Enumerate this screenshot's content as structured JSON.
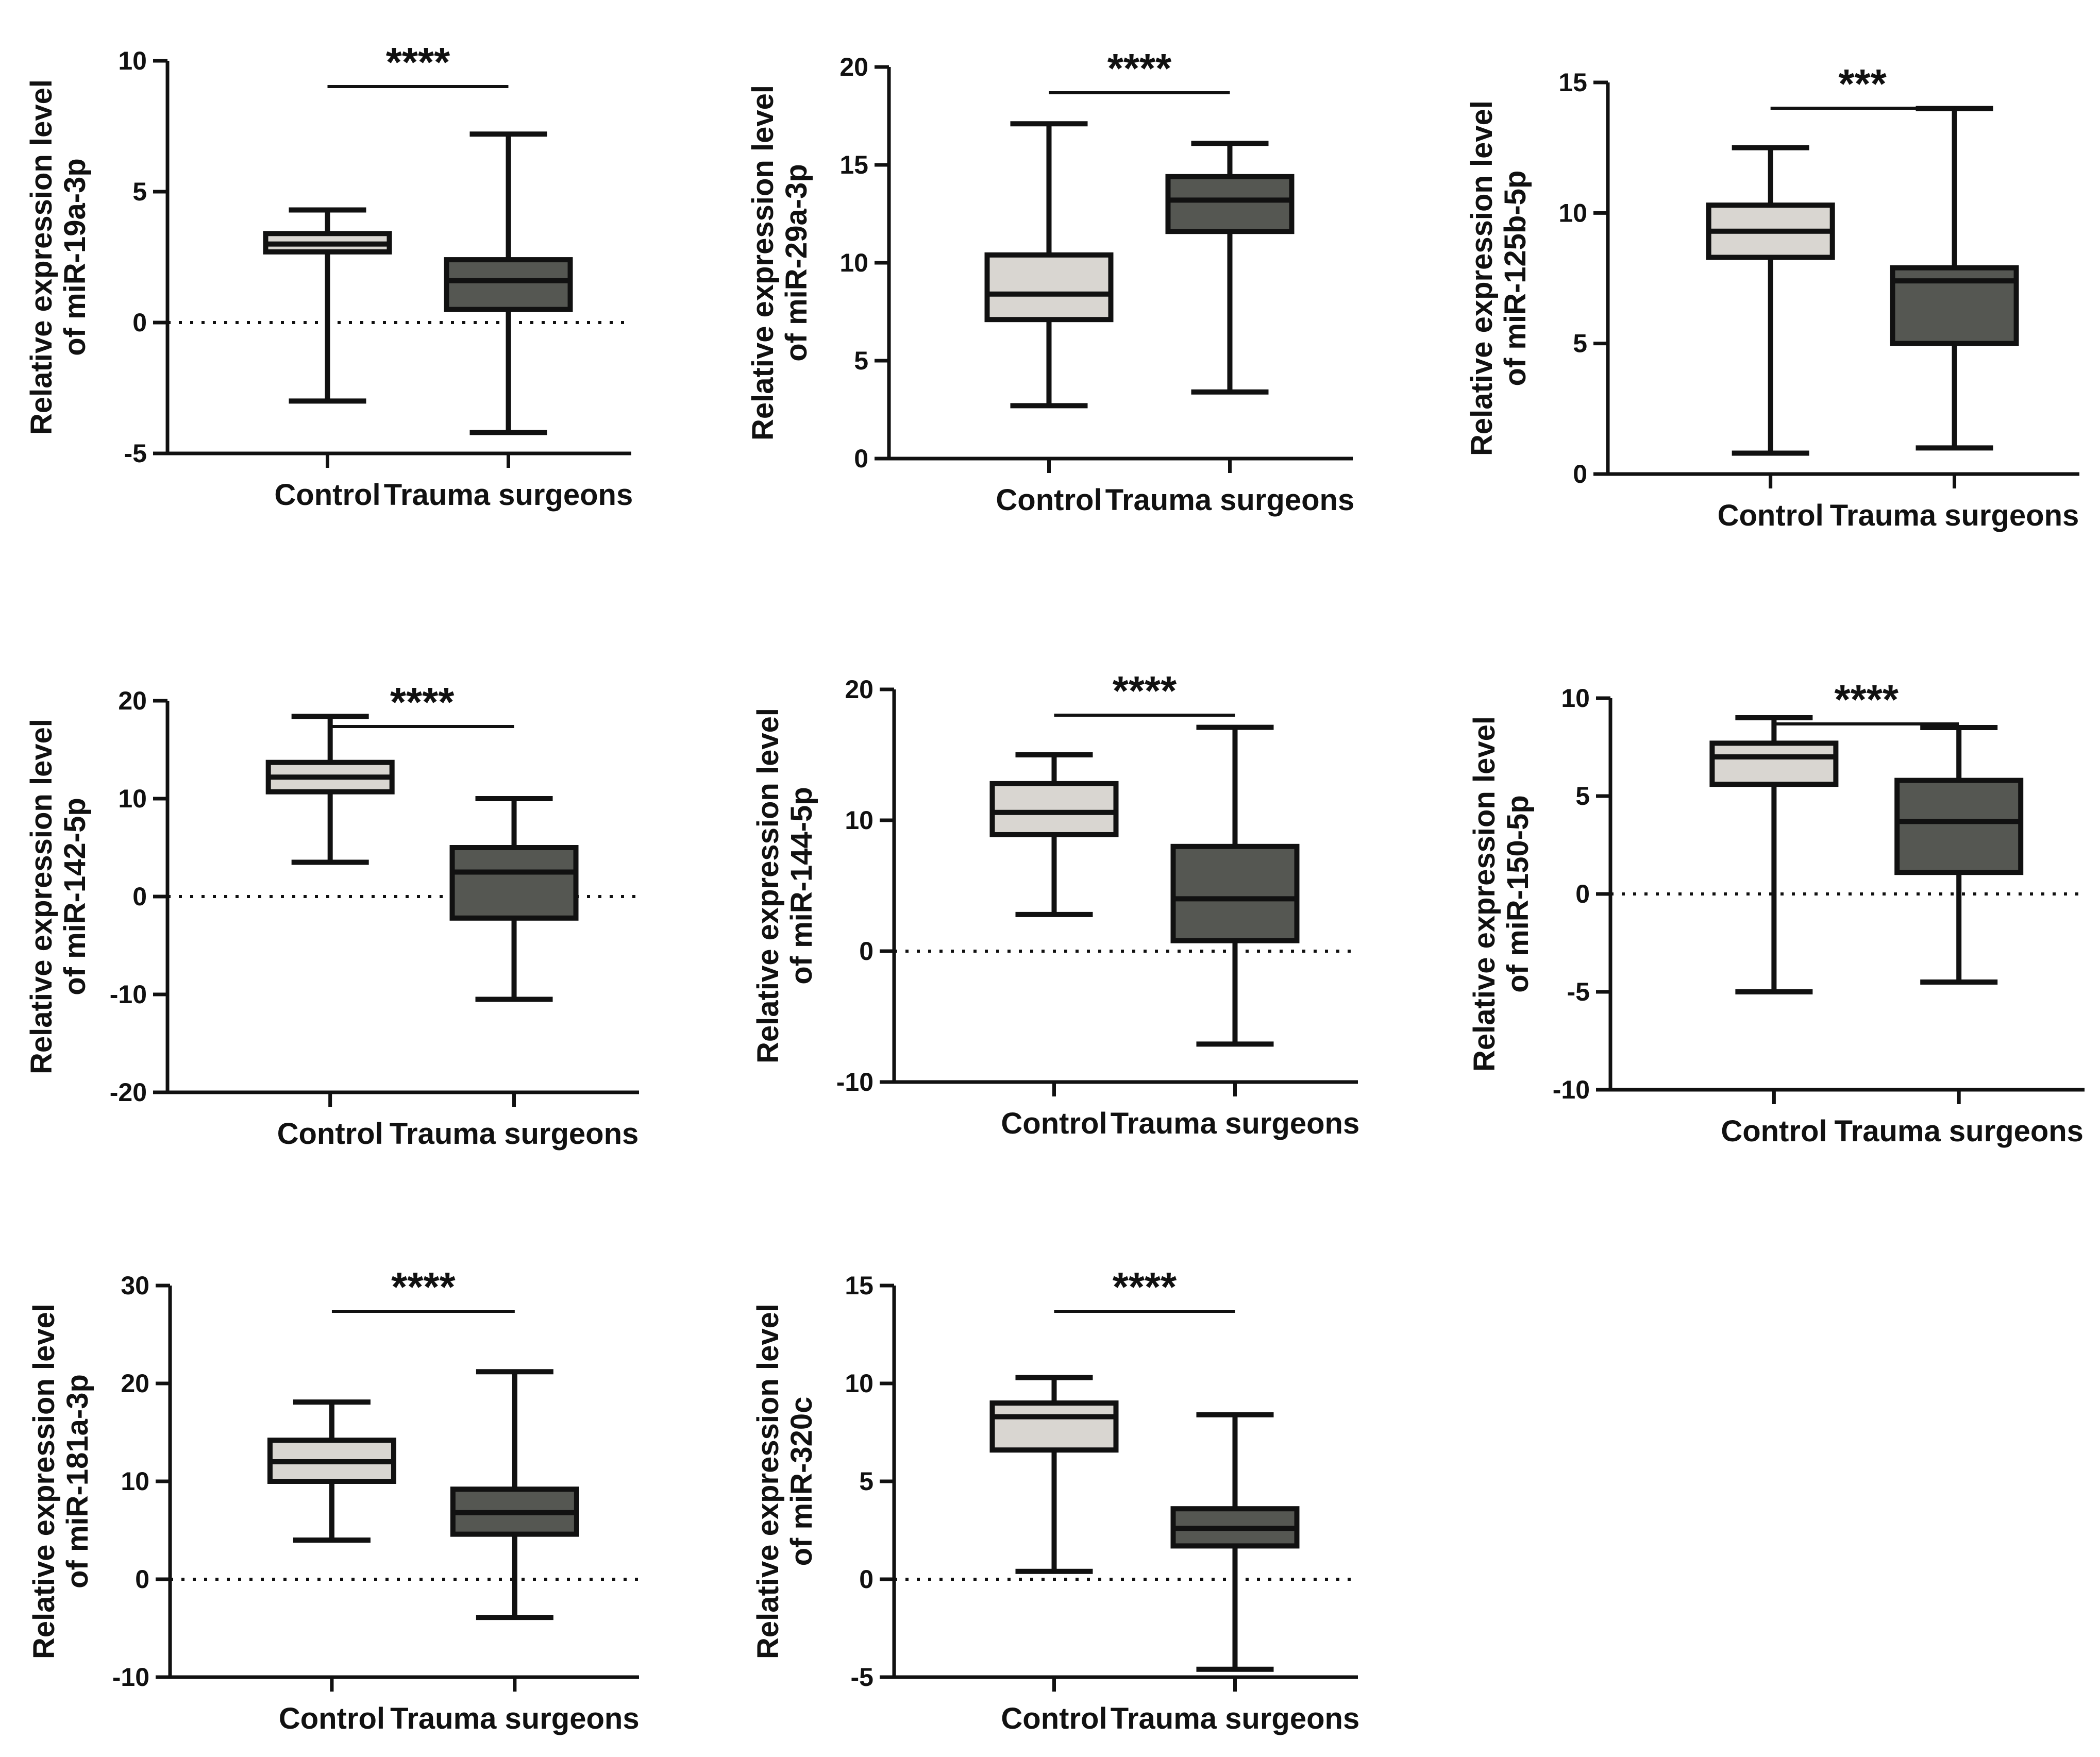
{
  "chart_data": [
    {
      "type": "box",
      "panel": "miR-19a-3p",
      "ylabel_line1": "Relative expression level",
      "ylabel_line2": "of miR-19a-3p",
      "ylim": [
        -5,
        10
      ],
      "ticks": [
        -5,
        0,
        5,
        10
      ],
      "tick_labels": [
        "-5",
        "0",
        "5",
        "10"
      ],
      "zero_line": true,
      "significance": "****",
      "categories": [
        "Control",
        "Trauma surgeons"
      ],
      "boxes": [
        {
          "name": "Control",
          "min": -3.0,
          "q1": 2.7,
          "median": 3.0,
          "q3": 3.4,
          "max": 4.3,
          "color": "#d9d6d1"
        },
        {
          "name": "Trauma surgeons",
          "min": -4.2,
          "q1": 0.5,
          "median": 1.6,
          "q3": 2.4,
          "max": 7.2,
          "color": "#555752"
        }
      ]
    },
    {
      "type": "box",
      "panel": "miR-29a-3p",
      "ylabel_line1": "Relative expression level",
      "ylabel_line2": "of miR-29a-3p",
      "ylim": [
        0,
        20
      ],
      "ticks": [
        0,
        5,
        10,
        15,
        20
      ],
      "tick_labels": [
        "0",
        "5",
        "10",
        "15",
        "20"
      ],
      "zero_line": false,
      "significance": "****",
      "categories": [
        "Control",
        "Trauma surgeons"
      ],
      "boxes": [
        {
          "name": "Control",
          "min": 2.7,
          "q1": 7.1,
          "median": 8.4,
          "q3": 10.4,
          "max": 17.1,
          "color": "#d9d6d1"
        },
        {
          "name": "Trauma surgeons",
          "min": 3.4,
          "q1": 11.6,
          "median": 13.2,
          "q3": 14.4,
          "max": 16.1,
          "color": "#555752"
        }
      ]
    },
    {
      "type": "box",
      "panel": "miR-125b-5p",
      "ylabel_line1": "Relative expression level",
      "ylabel_line2": "of miR-125b-5p",
      "ylim": [
        0,
        15
      ],
      "ticks": [
        0,
        5,
        10,
        15
      ],
      "tick_labels": [
        "0",
        "5",
        "10",
        "15"
      ],
      "zero_line": false,
      "significance": "***",
      "categories": [
        "Control",
        "Trauma surgeons"
      ],
      "boxes": [
        {
          "name": "Control",
          "min": 0.8,
          "q1": 8.3,
          "median": 9.3,
          "q3": 10.3,
          "max": 12.5,
          "color": "#d9d6d1"
        },
        {
          "name": "Trauma surgeons",
          "min": 1.0,
          "q1": 5.0,
          "median": 7.4,
          "q3": 7.9,
          "max": 14.0,
          "color": "#555752"
        }
      ]
    },
    {
      "type": "box",
      "panel": "miR-142-5p",
      "ylabel_line1": "Relative expression level",
      "ylabel_line2": "of miR-142-5p",
      "ylim": [
        -20,
        20
      ],
      "ticks": [
        -20,
        -10,
        0,
        10,
        20
      ],
      "tick_labels": [
        "-20",
        "-10",
        "0",
        "10",
        "20"
      ],
      "zero_line": true,
      "significance": "****",
      "categories": [
        "Control",
        "Trauma surgeons"
      ],
      "boxes": [
        {
          "name": "Control",
          "min": 3.5,
          "q1": 10.7,
          "median": 12.2,
          "q3": 13.7,
          "max": 18.4,
          "color": "#d9d6d1"
        },
        {
          "name": "Trauma surgeons",
          "min": -10.5,
          "q1": -2.2,
          "median": 2.5,
          "q3": 5.0,
          "max": 10.0,
          "color": "#555752"
        }
      ]
    },
    {
      "type": "box",
      "panel": "miR-144-5p",
      "ylabel_line1": "Relative expression level",
      "ylabel_line2": "of miR-144-5p",
      "ylim": [
        -10,
        20
      ],
      "ticks": [
        -10,
        0,
        10,
        20
      ],
      "tick_labels": [
        "-10",
        "0",
        "10",
        "20"
      ],
      "zero_line": true,
      "significance": "****",
      "categories": [
        "Control",
        "Trauma surgeons"
      ],
      "boxes": [
        {
          "name": "Control",
          "min": 2.8,
          "q1": 8.9,
          "median": 10.6,
          "q3": 12.8,
          "max": 15.0,
          "color": "#d9d6d1"
        },
        {
          "name": "Trauma surgeons",
          "min": -7.1,
          "q1": 0.8,
          "median": 4.0,
          "q3": 8.0,
          "max": 17.1,
          "color": "#555752"
        }
      ]
    },
    {
      "type": "box",
      "panel": "miR-150-5p",
      "ylabel_line1": "Relative expression level",
      "ylabel_line2": "of miR-150-5p",
      "ylim": [
        -10,
        10
      ],
      "ticks": [
        -10,
        -5,
        0,
        5,
        10
      ],
      "tick_labels": [
        "-10",
        "-5",
        "0",
        "5",
        "10"
      ],
      "zero_line": true,
      "significance": "****",
      "categories": [
        "Control",
        "Trauma surgeons"
      ],
      "boxes": [
        {
          "name": "Control",
          "min": -5.0,
          "q1": 5.6,
          "median": 7.0,
          "q3": 7.7,
          "max": 9.0,
          "color": "#d9d6d1"
        },
        {
          "name": "Trauma surgeons",
          "min": -4.5,
          "q1": 1.1,
          "median": 3.7,
          "q3": 5.8,
          "max": 8.5,
          "color": "#555752"
        }
      ]
    },
    {
      "type": "box",
      "panel": "miR-181a-3p",
      "ylabel_line1": "Relative expression level",
      "ylabel_line2": "of miR-181a-3p",
      "ylim": [
        -10,
        30
      ],
      "ticks": [
        -10,
        0,
        10,
        20,
        30
      ],
      "tick_labels": [
        "-10",
        "0",
        "10",
        "20",
        "30"
      ],
      "zero_line": true,
      "significance": "****",
      "categories": [
        "Control",
        "Trauma surgeons"
      ],
      "boxes": [
        {
          "name": "Control",
          "min": 4.0,
          "q1": 10.0,
          "median": 12.0,
          "q3": 14.2,
          "max": 18.1,
          "color": "#d9d6d1"
        },
        {
          "name": "Trauma surgeons",
          "min": -3.9,
          "q1": 4.6,
          "median": 6.8,
          "q3": 9.2,
          "max": 21.2,
          "color": "#555752"
        }
      ]
    },
    {
      "type": "box",
      "panel": "miR-320c",
      "ylabel_line1": "Relative expression level",
      "ylabel_line2": "of miR-320c",
      "ylim": [
        -5,
        15
      ],
      "ticks": [
        -5,
        0,
        5,
        10,
        15
      ],
      "tick_labels": [
        "-5",
        "0",
        "5",
        "10",
        "15"
      ],
      "zero_line": true,
      "significance": "****",
      "categories": [
        "Control",
        "Trauma surgeons"
      ],
      "boxes": [
        {
          "name": "Control",
          "min": 0.4,
          "q1": 6.6,
          "median": 8.3,
          "q3": 9.0,
          "max": 10.3,
          "color": "#d9d6d1"
        },
        {
          "name": "Trauma surgeons",
          "min": -4.6,
          "q1": 1.7,
          "median": 2.6,
          "q3": 3.6,
          "max": 8.4,
          "color": "#555752"
        }
      ]
    }
  ]
}
